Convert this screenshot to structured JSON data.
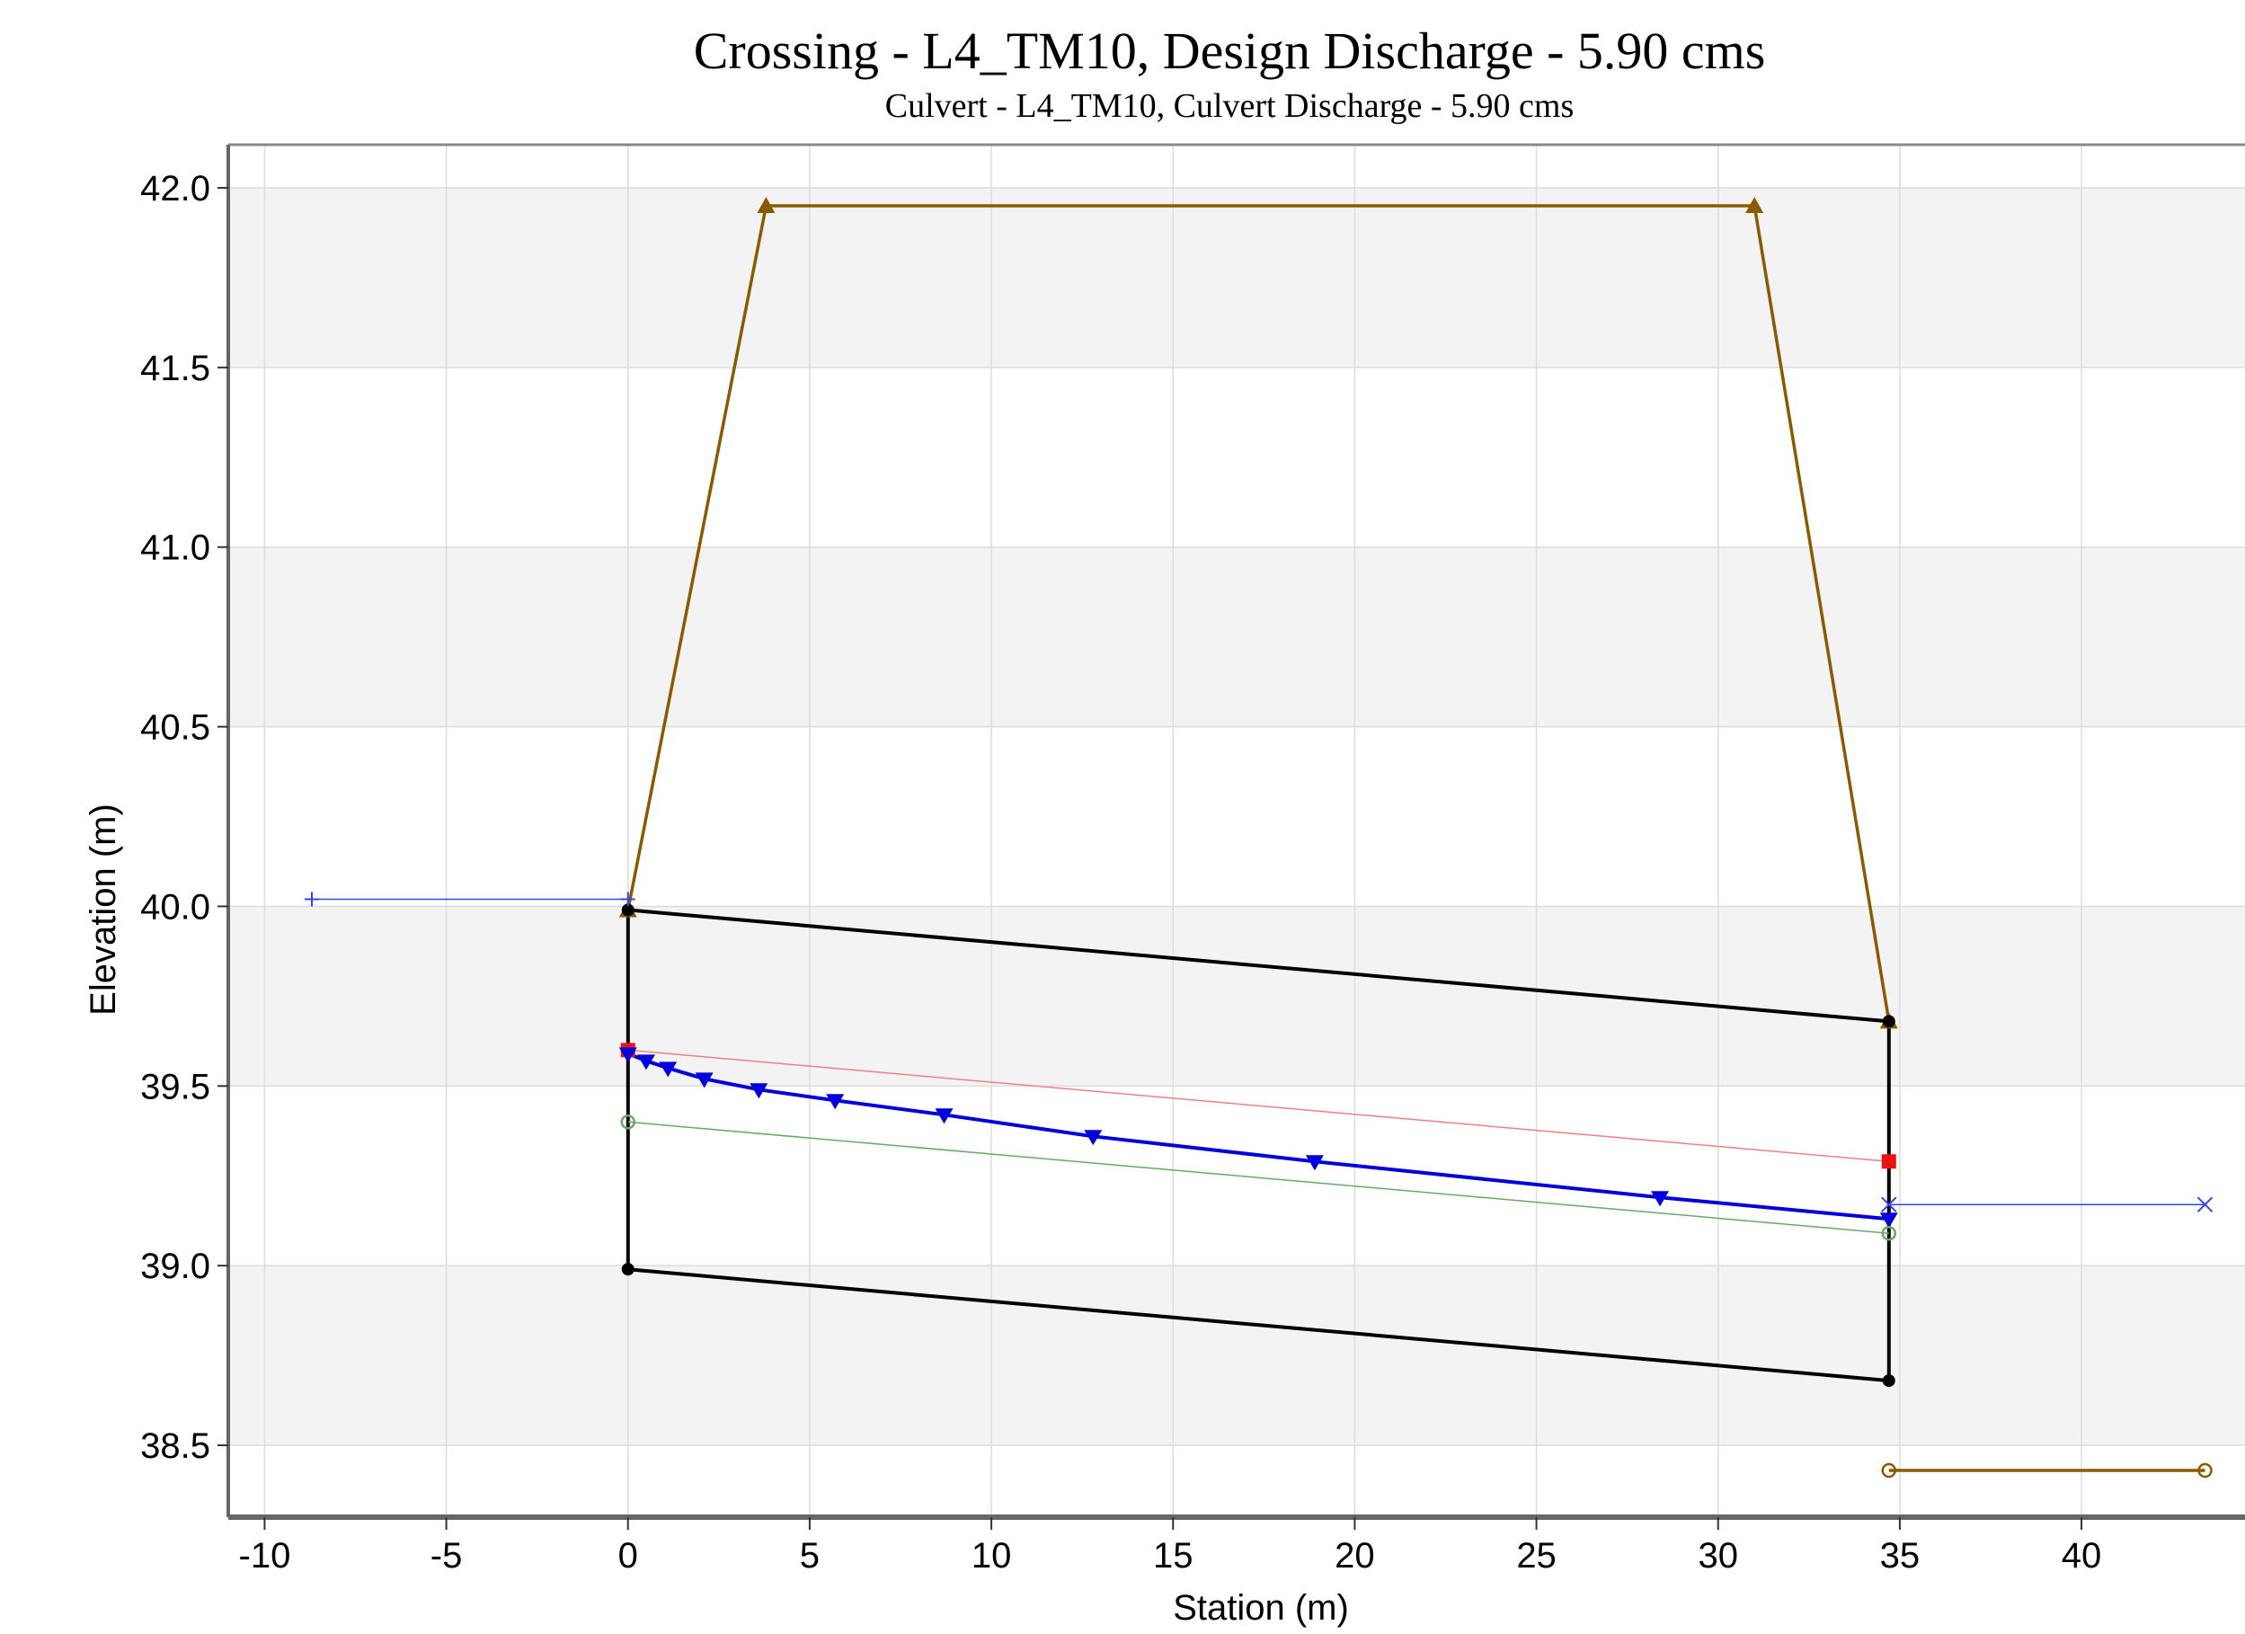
{
  "chart_data": {
    "type": "line",
    "title": "Crossing - L4_TM10, Design Discharge - 5.90 cms",
    "subtitle": "Culvert - L4_TM10, Culvert Discharge - 5.90 cms",
    "xlabel": "Station (m)",
    "ylabel": "Elevation (m)",
    "xlim": [
      -11,
      44.5
    ],
    "ylim": [
      38.3,
      42.12
    ],
    "x_ticks": [
      -10,
      -5,
      0,
      5,
      10,
      15,
      20,
      25,
      30,
      35,
      40
    ],
    "x_tick_labels": [
      "-10",
      "-5",
      "0",
      "5",
      "10",
      "15",
      "20",
      "25",
      "30",
      "35",
      "40"
    ],
    "y_ticks": [
      38.5,
      39.0,
      39.5,
      40.0,
      40.5,
      41.0,
      41.5,
      42.0
    ],
    "y_tick_labels": [
      "38.5",
      "39.0",
      "39.5",
      "40.0",
      "40.5",
      "41.0",
      "41.5",
      "42.0"
    ],
    "grid": true,
    "series": [
      {
        "color": "#8b5a00",
        "width": 3.5,
        "marker": "triangle",
        "points": [
          [
            0,
            39.99
          ],
          [
            3.8,
            41.95
          ],
          [
            31.0,
            41.95
          ],
          [
            34.7,
            39.68
          ]
        ]
      },
      {
        "color": "#000000",
        "width": 4,
        "marker": "dot",
        "points": [
          [
            0,
            39.99
          ],
          [
            34.7,
            39.68
          ]
        ]
      },
      {
        "color": "#000000",
        "width": 4,
        "marker": "dot",
        "points": [
          [
            0,
            38.99
          ],
          [
            34.7,
            38.68
          ]
        ]
      },
      {
        "color": "#000000",
        "width": 4,
        "marker": "none",
        "points": [
          [
            0,
            38.99
          ],
          [
            0,
            39.99
          ]
        ]
      },
      {
        "color": "#000000",
        "width": 4,
        "marker": "none",
        "points": [
          [
            34.7,
            38.68
          ],
          [
            34.7,
            39.68
          ]
        ]
      },
      {
        "color": "#f08080",
        "width": 1.5,
        "marker": "square",
        "points": [
          [
            0,
            39.6
          ],
          [
            34.7,
            39.29
          ]
        ]
      },
      {
        "color": "#0000dd",
        "width": 4,
        "marker": "down-triangle",
        "points": [
          [
            0,
            39.59
          ],
          [
            0.5,
            39.57
          ],
          [
            1.1,
            39.55
          ],
          [
            2.1,
            39.52
          ],
          [
            3.6,
            39.49
          ],
          [
            5.7,
            39.46
          ],
          [
            8.7,
            39.42
          ],
          [
            12.8,
            39.36
          ],
          [
            18.9,
            39.29
          ],
          [
            28.4,
            39.19
          ],
          [
            34.7,
            39.13
          ]
        ]
      },
      {
        "color": "#66aa66",
        "width": 1.5,
        "marker": "circle",
        "points": [
          [
            0,
            39.4
          ],
          [
            34.7,
            39.09
          ]
        ]
      },
      {
        "color": "#3344ee",
        "width": 1.5,
        "marker": "plus",
        "points": [
          [
            -8.7,
            40.02
          ],
          [
            0,
            40.02
          ]
        ]
      },
      {
        "color": "#3344ee",
        "width": 1.5,
        "marker": "cross",
        "points": [
          [
            34.7,
            39.17
          ],
          [
            43.4,
            39.17
          ]
        ]
      },
      {
        "color": "#8b5a00",
        "width": 3.5,
        "marker": "circle",
        "points": [
          [
            34.7,
            38.43
          ],
          [
            43.4,
            38.43
          ]
        ]
      }
    ]
  }
}
